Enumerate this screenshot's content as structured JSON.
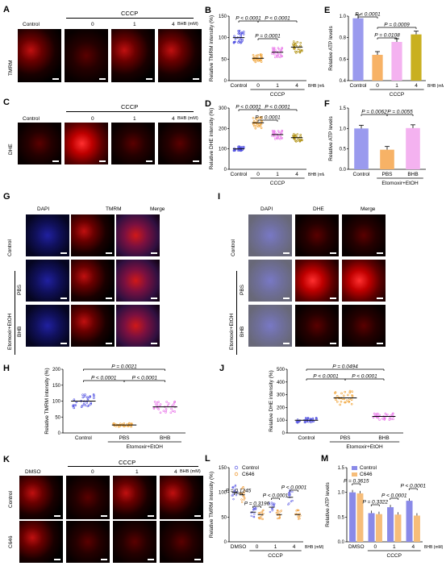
{
  "panels": {
    "A": {
      "letter": "A",
      "group": "CCCP",
      "cols": [
        "Control",
        "0",
        "1",
        "4"
      ],
      "unit": "BHB (mM)",
      "row": "TMRM"
    },
    "B": {
      "letter": "B",
      "ylabel": "Relative TMRM intensity (%)",
      "ylim": [
        0,
        150
      ],
      "yticks": [
        "0",
        "50",
        "100",
        "150"
      ],
      "cats": [
        "Control",
        "0",
        "1",
        "4"
      ],
      "unit": "BHB (mM)",
      "group": "CCCP",
      "p": [
        "P < 0.0001",
        "P < 0.0001",
        "P = 0.0001"
      ]
    },
    "C": {
      "letter": "C",
      "group": "CCCP",
      "cols": [
        "Control",
        "0",
        "1",
        "4"
      ],
      "unit": "BHB (mM)",
      "row": "DHE"
    },
    "D": {
      "letter": "D",
      "ylabel": "Relative DHE intensity (%)",
      "ylim": [
        0,
        300
      ],
      "yticks": [
        "0",
        "100",
        "200",
        "300"
      ],
      "cats": [
        "Control",
        "0",
        "1",
        "4"
      ],
      "unit": "BHB (mM)",
      "group": "CCCP",
      "p": [
        "P < 0.0001",
        "P < 0.0001",
        "P < 0.0001"
      ]
    },
    "E": {
      "letter": "E",
      "ylabel": "Relative ATP levels",
      "ylim": [
        0.4,
        1.0
      ],
      "yticks": [
        "0.4",
        "0.6",
        "0.8",
        "1.0"
      ],
      "cats": [
        "Control",
        "0",
        "1",
        "4"
      ],
      "unit": "BHB (mM)",
      "group": "CCCP",
      "p": [
        "P < 0.0001",
        "P = 0.0009",
        "P = 0.0108"
      ]
    },
    "F": {
      "letter": "F",
      "ylabel": "Relative ATP levels",
      "ylim": [
        0,
        1.5
      ],
      "yticks": [
        "0.0",
        "0.5",
        "1.0",
        "1.5"
      ],
      "cats": [
        "Control",
        "PBS",
        "BHB"
      ],
      "group": "Etomoxir+EtOH",
      "p": [
        "P = 0.0062",
        "P = 0.0055"
      ]
    },
    "G": {
      "letter": "G",
      "cols": [
        "DAPI",
        "TMRM",
        "Merge"
      ],
      "rows": [
        "Control",
        "PBS",
        "BHB"
      ],
      "group": "Etomoxir+EtOH"
    },
    "I": {
      "letter": "I",
      "cols": [
        "DAPI",
        "DHE",
        "Merge"
      ],
      "rows": [
        "Control",
        "PBS",
        "BHB"
      ],
      "group": "Etomoxir+EtOH"
    },
    "H": {
      "letter": "H",
      "ylabel": "Relative TMRM intensity (%)",
      "ylim": [
        0,
        200
      ],
      "yticks": [
        "0",
        "50",
        "100",
        "150",
        "200"
      ],
      "cats": [
        "Control",
        "PBS",
        "BHB"
      ],
      "group": "Etomoxir+EtOH",
      "p": [
        "P = 0.0021",
        "P < 0.0001",
        "P < 0.0001"
      ]
    },
    "J": {
      "letter": "J",
      "ylabel": "Relative DHE intensity (%)",
      "ylim": [
        0,
        500
      ],
      "yticks": [
        "0",
        "100",
        "200",
        "300",
        "400",
        "500"
      ],
      "cats": [
        "Control",
        "PBS",
        "BHB"
      ],
      "group": "Etomoxir+EtOH",
      "p": [
        "P = 0.0494",
        "P < 0.0001",
        "P < 0.0001"
      ]
    },
    "K": {
      "letter": "K",
      "group": "CCCP",
      "cols": [
        "DMSO",
        "0",
        "1",
        "4"
      ],
      "unit": "BHB (mM)",
      "rows": [
        "Control",
        "C646"
      ]
    },
    "L": {
      "letter": "L",
      "ylabel": "Relative TMRM intensity (%)",
      "ylim": [
        0,
        150
      ],
      "yticks": [
        "0",
        "50",
        "100",
        "150"
      ],
      "cats": [
        "DMSO",
        "0",
        "1",
        "4"
      ],
      "unit": "BHB (mM)",
      "group": "CCCP",
      "legend": [
        "Control",
        "C646"
      ],
      "p": [
        "P = 0.1245",
        "P = 0.3196",
        "P < 0.0001",
        "P < 0.0001"
      ]
    },
    "M": {
      "letter": "M",
      "ylabel": "Relative ATP levels",
      "ylim": [
        0,
        1.5
      ],
      "yticks": [
        "0.0",
        "0.5",
        "1.0",
        "1.5"
      ],
      "cats": [
        "DMSO",
        "0",
        "1",
        "4"
      ],
      "unit": "BHB (mM)",
      "group": "CCCP",
      "legend": [
        "Control",
        "C646"
      ],
      "p": [
        "P = 0.3615",
        "P = 0.3322",
        "P < 0.0001",
        "P < 0.0001"
      ]
    }
  },
  "chart_data": [
    {
      "type": "scatter",
      "panel": "B",
      "categories": [
        "Control",
        "0",
        "1",
        "4"
      ],
      "values": [
        100,
        52,
        66,
        78
      ],
      "ylim": [
        0,
        150
      ],
      "ylabel": "Relative TMRM intensity (%)"
    },
    {
      "type": "scatter",
      "panel": "D",
      "categories": [
        "Control",
        "0",
        "1",
        "4"
      ],
      "values": [
        100,
        228,
        170,
        155
      ],
      "ylim": [
        0,
        300
      ],
      "ylabel": "Relative DHE intensity (%)"
    },
    {
      "type": "bar",
      "panel": "E",
      "categories": [
        "Control",
        "0",
        "1",
        "4"
      ],
      "values": [
        0.98,
        0.64,
        0.76,
        0.83
      ],
      "ylim": [
        0.4,
        1.0
      ],
      "ylabel": "Relative ATP levels",
      "colors": [
        "#9a9aee",
        "#f7b266",
        "#f4b2f0",
        "#c9b020"
      ]
    },
    {
      "type": "bar",
      "panel": "F",
      "categories": [
        "Control",
        "PBS",
        "BHB"
      ],
      "values": [
        1.0,
        0.48,
        1.01
      ],
      "ylim": [
        0,
        1.5
      ],
      "ylabel": "Relative ATP levels",
      "colors": [
        "#9a9aee",
        "#f7b266",
        "#f4b2f0"
      ]
    },
    {
      "type": "scatter",
      "panel": "H",
      "categories": [
        "Control",
        "PBS",
        "BHB"
      ],
      "values": [
        100,
        25,
        82
      ],
      "ylim": [
        0,
        200
      ],
      "ylabel": "Relative TMRM intensity (%)"
    },
    {
      "type": "scatter",
      "panel": "J",
      "categories": [
        "Control",
        "PBS",
        "BHB"
      ],
      "values": [
        100,
        275,
        130
      ],
      "ylim": [
        0,
        500
      ],
      "ylabel": "Relative DHE intensity (%)"
    },
    {
      "type": "scatter",
      "panel": "L",
      "categories": [
        "DMSO",
        "0",
        "1",
        "4"
      ],
      "series": [
        {
          "name": "Control",
          "values": [
            100,
            60,
            70,
            90
          ]
        },
        {
          "name": "C646",
          "values": [
            95,
            55,
            55,
            55
          ]
        }
      ],
      "ylim": [
        0,
        150
      ],
      "ylabel": "Relative TMRM intensity (%)"
    },
    {
      "type": "bar",
      "panel": "M",
      "categories": [
        "DMSO",
        "0",
        "1",
        "4"
      ],
      "series": [
        {
          "name": "Control",
          "values": [
            1.0,
            0.58,
            0.7,
            0.83
          ]
        },
        {
          "name": "C646",
          "values": [
            0.98,
            0.56,
            0.55,
            0.53
          ]
        }
      ],
      "ylim": [
        0,
        1.5
      ],
      "ylabel": "Relative ATP levels"
    }
  ],
  "colors": {
    "blue": "#6a6ae6",
    "orange": "#f0a040",
    "pink": "#f08cf0",
    "olive": "#c9b020",
    "red": "#c01010"
  }
}
